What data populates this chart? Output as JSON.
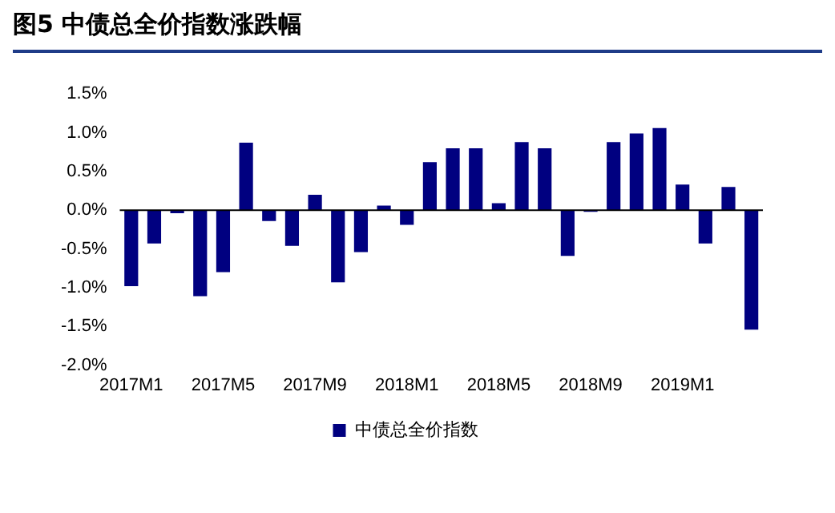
{
  "chart_data": {
    "type": "bar",
    "title": "图5 中债总全价指数涨跌幅",
    "categories": [
      "2017M1",
      null,
      null,
      null,
      "2017M5",
      null,
      null,
      null,
      "2017M9",
      null,
      null,
      null,
      "2018M1",
      null,
      null,
      null,
      "2018M5",
      null,
      null,
      null,
      "2018M9",
      null,
      null,
      null,
      "2019M1",
      null,
      null,
      null
    ],
    "series": [
      {
        "name": "中债总全价指数",
        "color": "#000080",
        "values": [
          -0.98,
          -0.43,
          -0.04,
          -1.11,
          -0.8,
          0.87,
          -0.14,
          -0.46,
          0.2,
          -0.93,
          -0.54,
          0.06,
          -0.19,
          0.62,
          0.8,
          0.8,
          0.09,
          0.88,
          0.8,
          -0.59,
          -0.02,
          0.88,
          0.99,
          1.06,
          0.33,
          -0.43,
          0.3,
          -1.54
        ]
      }
    ],
    "ylim": [
      -2.0,
      1.5
    ],
    "yticks": [
      {
        "value": -2.0,
        "label": "-2.0%"
      },
      {
        "value": -1.5,
        "label": "-1.5%"
      },
      {
        "value": -1.0,
        "label": "-1.0%"
      },
      {
        "value": -0.5,
        "label": "-0.5%"
      },
      {
        "value": 0,
        "label": "0.0%"
      },
      {
        "value": 0.5,
        "label": "0.5%"
      },
      {
        "value": 1.0,
        "label": "1.0%"
      },
      {
        "value": 1.5,
        "label": "1.5%"
      }
    ],
    "ref_lines": [
      {
        "axis": "y",
        "value": 0,
        "color": "#000000"
      }
    ],
    "grid": false,
    "legend": "bottom"
  }
}
